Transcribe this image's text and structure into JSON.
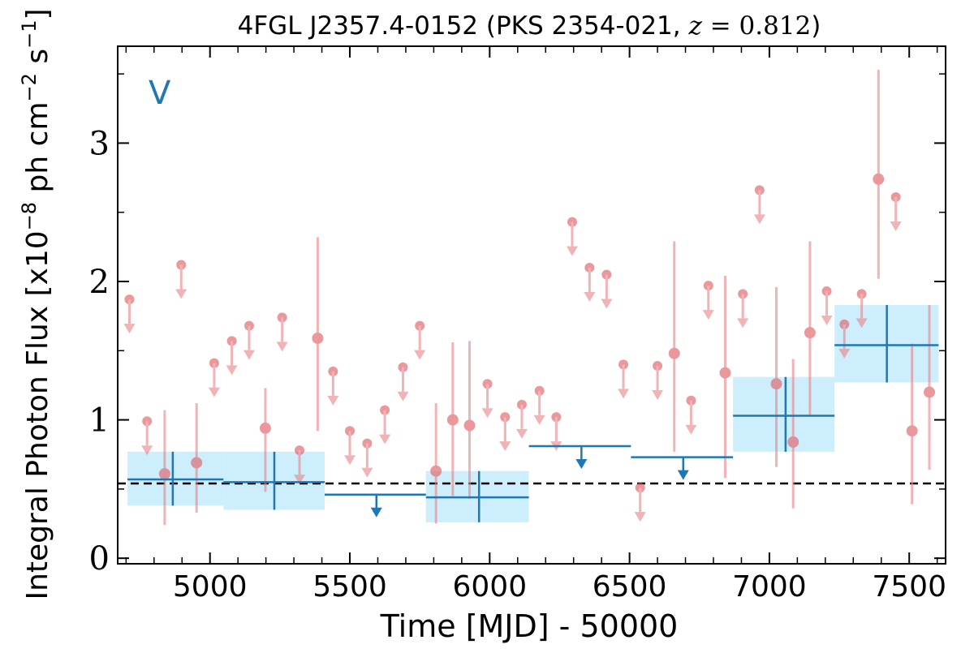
{
  "chart_data": {
    "type": "scatter",
    "title": "4FGL J2357.4-0152 (PKS 2354-021, z = 0.812)",
    "title_parts": {
      "main": "4FGL J2357.4-0152 (PKS 2354-021, ",
      "z_symbol": "z",
      "z_value": " = 0.812",
      "close": ")"
    },
    "xlabel": "Time [MJD] - 50000",
    "ylabel_parts": {
      "a": "Integral Photon Flux [x10",
      "exp1": "−8",
      "b": " ph cm",
      "exp2": "−2",
      "c": " s",
      "exp3": "−1",
      "d": "]"
    },
    "panel_label": "V",
    "xlim": [
      4670,
      7630
    ],
    "ylim": [
      -0.04,
      3.7
    ],
    "x_ticks": [
      5000,
      5500,
      6000,
      6500,
      7000,
      7500
    ],
    "x_tick_labels": [
      "5000",
      "5500",
      "6000",
      "6500",
      "7000",
      "7500"
    ],
    "y_ticks": [
      0,
      1,
      2,
      3
    ],
    "y_tick_labels": [
      "0",
      "1",
      "2",
      "3"
    ],
    "grid": false,
    "colors": {
      "short_bin_points": "#e8868a",
      "long_bin_line": "#1f77b4",
      "long_bin_band": "#cdeefc",
      "mean_line": "#000000",
      "panel_label": "#1f77b4"
    },
    "mean_flux": 0.54,
    "series": [
      {
        "kind": "short-bin-detections",
        "points": [
          {
            "x": 4838,
            "y": 0.61,
            "ylo": 0.24,
            "yhi": 1.07
          },
          {
            "x": 4952,
            "y": 0.69,
            "ylo": 0.33,
            "yhi": 1.12
          },
          {
            "x": 5198,
            "y": 0.94,
            "ylo": 0.48,
            "yhi": 1.23
          },
          {
            "x": 5385,
            "y": 1.59,
            "ylo": 0.92,
            "yhi": 2.32
          },
          {
            "x": 5808,
            "y": 0.63,
            "ylo": 0.25,
            "yhi": 1.12
          },
          {
            "x": 5868,
            "y": 1.0,
            "ylo": 0.45,
            "yhi": 1.56
          },
          {
            "x": 5928,
            "y": 0.96,
            "ylo": 0.43,
            "yhi": 1.57
          },
          {
            "x": 6660,
            "y": 1.48,
            "ylo": 0.77,
            "yhi": 2.29
          },
          {
            "x": 6842,
            "y": 1.34,
            "ylo": 0.58,
            "yhi": 2.04
          },
          {
            "x": 7025,
            "y": 1.26,
            "ylo": 0.66,
            "yhi": 1.96
          },
          {
            "x": 7085,
            "y": 0.84,
            "ylo": 0.36,
            "yhi": 1.44
          },
          {
            "x": 7145,
            "y": 1.63,
            "ylo": 1.03,
            "yhi": 2.29
          },
          {
            "x": 7390,
            "y": 2.74,
            "ylo": 2.02,
            "yhi": 3.53
          },
          {
            "x": 7510,
            "y": 0.92,
            "ylo": 0.39,
            "yhi": 1.55
          },
          {
            "x": 7572,
            "y": 1.2,
            "ylo": 0.64,
            "yhi": 1.83
          }
        ]
      },
      {
        "kind": "short-bin-upper-limits",
        "points": [
          {
            "x": 4712,
            "y": 1.87
          },
          {
            "x": 4775,
            "y": 0.99
          },
          {
            "x": 4897,
            "y": 2.12
          },
          {
            "x": 5015,
            "y": 1.41
          },
          {
            "x": 5078,
            "y": 1.57
          },
          {
            "x": 5140,
            "y": 1.68
          },
          {
            "x": 5258,
            "y": 1.74
          },
          {
            "x": 5320,
            "y": 0.78
          },
          {
            "x": 5440,
            "y": 1.35
          },
          {
            "x": 5500,
            "y": 0.92
          },
          {
            "x": 5562,
            "y": 0.83
          },
          {
            "x": 5625,
            "y": 1.07
          },
          {
            "x": 5690,
            "y": 1.38
          },
          {
            "x": 5750,
            "y": 1.68
          },
          {
            "x": 5992,
            "y": 1.26
          },
          {
            "x": 6055,
            "y": 1.02
          },
          {
            "x": 6115,
            "y": 1.11
          },
          {
            "x": 6178,
            "y": 1.21
          },
          {
            "x": 6238,
            "y": 1.02
          },
          {
            "x": 6295,
            "y": 2.43
          },
          {
            "x": 6357,
            "y": 2.1
          },
          {
            "x": 6418,
            "y": 2.05
          },
          {
            "x": 6478,
            "y": 1.4
          },
          {
            "x": 6538,
            "y": 0.51
          },
          {
            "x": 6600,
            "y": 1.39
          },
          {
            "x": 6720,
            "y": 1.14
          },
          {
            "x": 6782,
            "y": 1.97
          },
          {
            "x": 6905,
            "y": 1.91
          },
          {
            "x": 6965,
            "y": 2.66
          },
          {
            "x": 7205,
            "y": 1.93
          },
          {
            "x": 7268,
            "y": 1.69
          },
          {
            "x": 7330,
            "y": 1.91
          },
          {
            "x": 7452,
            "y": 2.61
          }
        ]
      },
      {
        "kind": "long-bin-detections",
        "bins": [
          {
            "x0": 4705,
            "x1": 5048,
            "y": 0.57,
            "ylo": 0.38,
            "yhi": 0.77,
            "xc": 4867
          },
          {
            "x0": 5048,
            "x1": 5410,
            "y": 0.55,
            "ylo": 0.35,
            "yhi": 0.77,
            "xc": 5230
          },
          {
            "x0": 5772,
            "x1": 6140,
            "y": 0.44,
            "ylo": 0.26,
            "yhi": 0.63,
            "xc": 5962
          },
          {
            "x0": 6870,
            "x1": 7233,
            "y": 1.03,
            "ylo": 0.77,
            "yhi": 1.31,
            "xc": 7058
          },
          {
            "x0": 7233,
            "x1": 7605,
            "y": 1.54,
            "ylo": 1.27,
            "yhi": 1.83,
            "xc": 7420
          }
        ]
      },
      {
        "kind": "long-bin-upper-limits",
        "bins": [
          {
            "x0": 5410,
            "x1": 5772,
            "y": 0.46,
            "xc": 5595
          },
          {
            "x0": 6140,
            "x1": 6505,
            "y": 0.81,
            "xc": 6328
          },
          {
            "x0": 6505,
            "x1": 6870,
            "y": 0.73,
            "xc": 6692
          }
        ]
      }
    ]
  }
}
